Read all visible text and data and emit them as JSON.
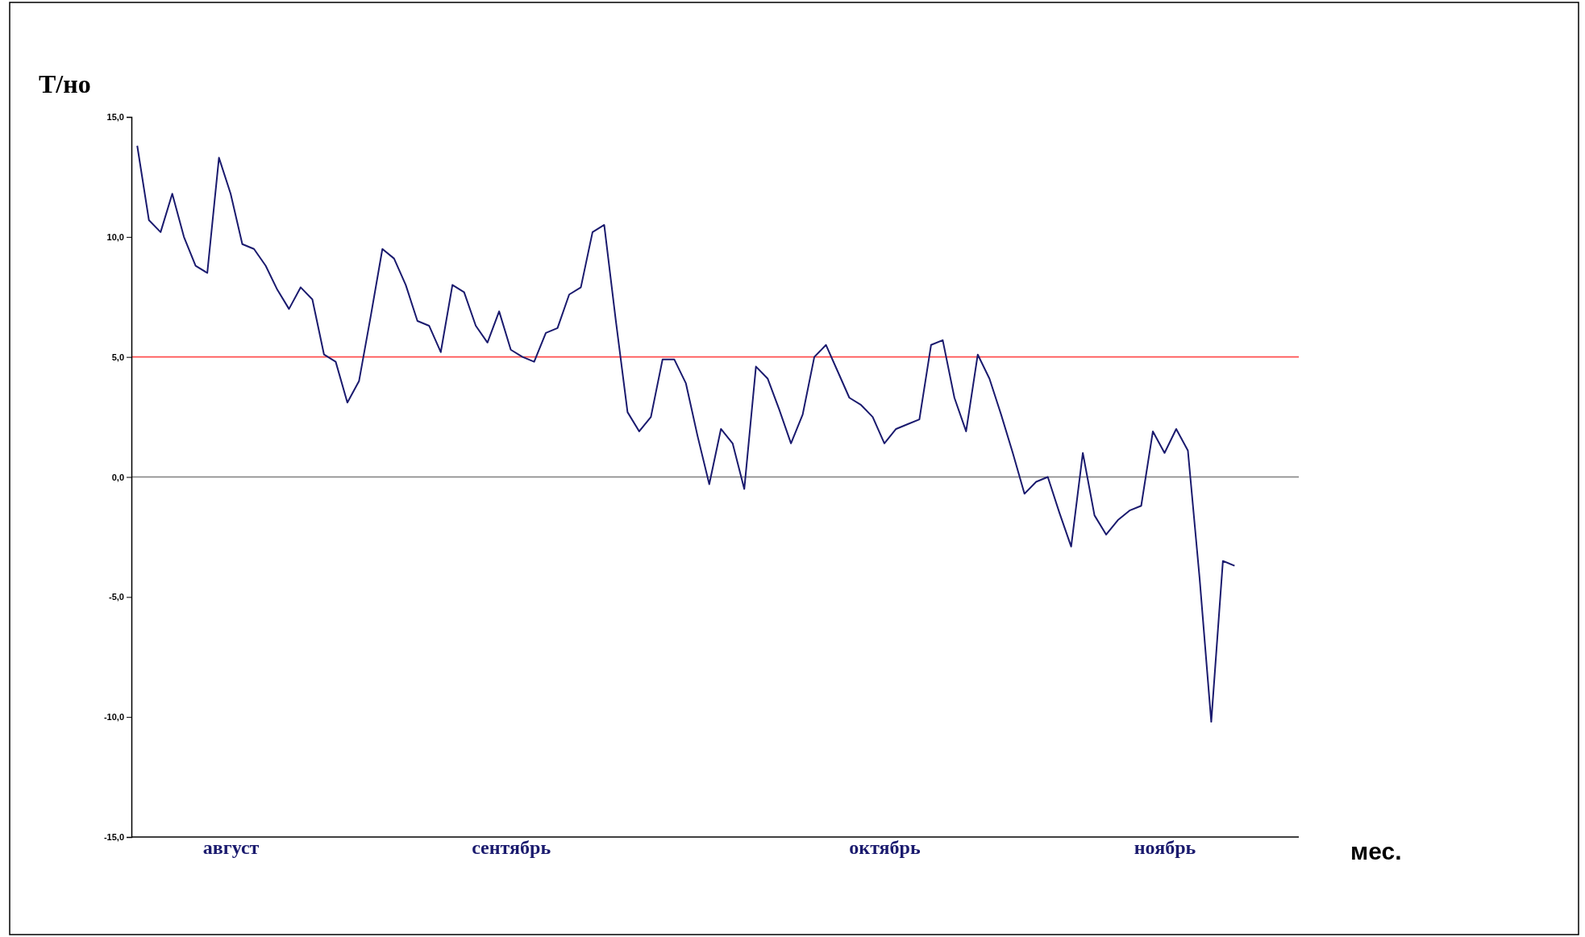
{
  "chart_data": {
    "type": "line",
    "xlabel": "мес.",
    "ylabel": "Т/но",
    "categories": [
      null,
      null,
      null,
      null,
      null,
      null,
      null,
      null,
      "август",
      null,
      null,
      null,
      null,
      null,
      null,
      null,
      null,
      null,
      null,
      null,
      null,
      null,
      null,
      null,
      null,
      null,
      null,
      null,
      null,
      null,
      null,
      null,
      "сентябрь",
      null,
      null,
      null,
      null,
      null,
      null,
      null,
      null,
      null,
      null,
      null,
      null,
      null,
      null,
      null,
      null,
      null,
      null,
      null,
      null,
      null,
      null,
      null,
      null,
      null,
      null,
      null,
      null,
      null,
      null,
      null,
      "октябрь",
      null,
      null,
      null,
      null,
      null,
      null,
      null,
      null,
      null,
      null,
      null,
      null,
      null,
      null,
      null,
      null,
      null,
      null,
      null,
      null,
      null,
      null,
      null,
      "ноябрь",
      null,
      null,
      null,
      null,
      null,
      null,
      null,
      null,
      null,
      null,
      null
    ],
    "series": [
      {
        "color": "#1a1a6e",
        "values": [
          13.8,
          10.7,
          10.2,
          11.8,
          10.0,
          8.8,
          8.5,
          13.3,
          11.8,
          9.7,
          9.5,
          8.8,
          7.8,
          7.0,
          7.9,
          7.4,
          5.1,
          4.8,
          3.1,
          4.0,
          6.7,
          9.5,
          9.1,
          8.0,
          6.5,
          6.3,
          5.2,
          8.0,
          7.7,
          6.3,
          5.6,
          6.9,
          5.3,
          5.0,
          4.8,
          6.0,
          6.2,
          7.6,
          7.9,
          10.2,
          10.5,
          6.5,
          2.7,
          1.9,
          2.5,
          4.9,
          4.9,
          3.9,
          1.7,
          -0.3,
          2.0,
          1.4,
          -0.5,
          4.6,
          4.1,
          2.8,
          1.4,
          2.6,
          5.0,
          5.5,
          4.4,
          3.3,
          3.0,
          2.5,
          1.4,
          2.0,
          2.2,
          2.4,
          5.5,
          5.7,
          3.3,
          1.9,
          5.1,
          4.1,
          2.6,
          1.0,
          -0.7,
          -0.2,
          0.0,
          -1.5,
          -2.9,
          1.0,
          -1.6,
          -2.4,
          -1.8,
          -1.4,
          -1.2,
          1.9,
          1.0,
          2.0,
          1.1,
          -4.2,
          -10.2,
          -3.5,
          -3.7,
          null,
          null,
          null,
          null,
          null
        ]
      }
    ],
    "ylim": [
      -15,
      15
    ],
    "yticks": [
      {
        "value": -15,
        "label": "-15,0"
      },
      {
        "value": -10,
        "label": "-10,0"
      },
      {
        "value": -5,
        "label": "-5,0"
      },
      {
        "value": 0,
        "label": "0,0"
      },
      {
        "value": 5,
        "label": "5,0"
      },
      {
        "value": 10,
        "label": "10,0"
      },
      {
        "value": 15,
        "label": "15,0"
      }
    ],
    "ref_lines": [
      {
        "axis": "y",
        "value": 5,
        "color": "#ff5050"
      },
      {
        "axis": "y",
        "value": 0,
        "color": "#808080"
      }
    ],
    "marker": "none",
    "line_style": "solid"
  }
}
